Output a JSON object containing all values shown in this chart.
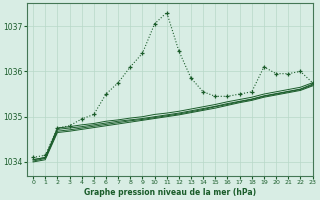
{
  "title": "Graphe pression niveau de la mer (hPa)",
  "bg_color": "#d8ede4",
  "grid_color": "#b8d8c8",
  "line_color": "#1a5c2a",
  "xlim": [
    -0.5,
    23
  ],
  "ylim": [
    1033.7,
    1037.5
  ],
  "yticks": [
    1034,
    1035,
    1036,
    1037
  ],
  "xticks": [
    0,
    1,
    2,
    3,
    4,
    5,
    6,
    7,
    8,
    9,
    10,
    11,
    12,
    13,
    14,
    15,
    16,
    17,
    18,
    19,
    20,
    21,
    22,
    23
  ],
  "series": {
    "main": [
      1034.1,
      1034.15,
      1034.75,
      1034.8,
      1034.95,
      1035.05,
      1035.5,
      1035.75,
      1036.1,
      1036.4,
      1037.05,
      1037.3,
      1036.45,
      1035.85,
      1035.55,
      1035.45,
      1035.45,
      1035.5,
      1035.55,
      1036.1,
      1035.95,
      1035.95,
      1036.0,
      1035.75
    ],
    "line1": [
      1034.05,
      1034.1,
      1034.75,
      1034.78,
      1034.82,
      1034.85,
      1034.9,
      1034.93,
      1034.97,
      1035.0,
      1035.05,
      1035.08,
      1035.12,
      1035.17,
      1035.22,
      1035.27,
      1035.33,
      1035.38,
      1035.43,
      1035.5,
      1035.55,
      1035.6,
      1035.65,
      1035.75
    ],
    "line2": [
      1034.05,
      1034.1,
      1034.72,
      1034.75,
      1034.78,
      1034.82,
      1034.86,
      1034.9,
      1034.93,
      1034.96,
      1035.0,
      1035.04,
      1035.08,
      1035.13,
      1035.18,
      1035.23,
      1035.29,
      1035.34,
      1035.39,
      1035.46,
      1035.51,
      1035.56,
      1035.61,
      1035.72
    ],
    "line3": [
      1034.02,
      1034.08,
      1034.68,
      1034.71,
      1034.75,
      1034.79,
      1034.83,
      1034.87,
      1034.91,
      1034.94,
      1034.98,
      1035.02,
      1035.06,
      1035.11,
      1035.16,
      1035.22,
      1035.27,
      1035.33,
      1035.38,
      1035.45,
      1035.5,
      1035.55,
      1035.6,
      1035.7
    ],
    "line4": [
      1034.0,
      1034.05,
      1034.65,
      1034.68,
      1034.72,
      1034.76,
      1034.8,
      1034.84,
      1034.88,
      1034.92,
      1034.96,
      1035.0,
      1035.04,
      1035.09,
      1035.14,
      1035.19,
      1035.25,
      1035.31,
      1035.36,
      1035.43,
      1035.48,
      1035.53,
      1035.58,
      1035.68
    ]
  }
}
